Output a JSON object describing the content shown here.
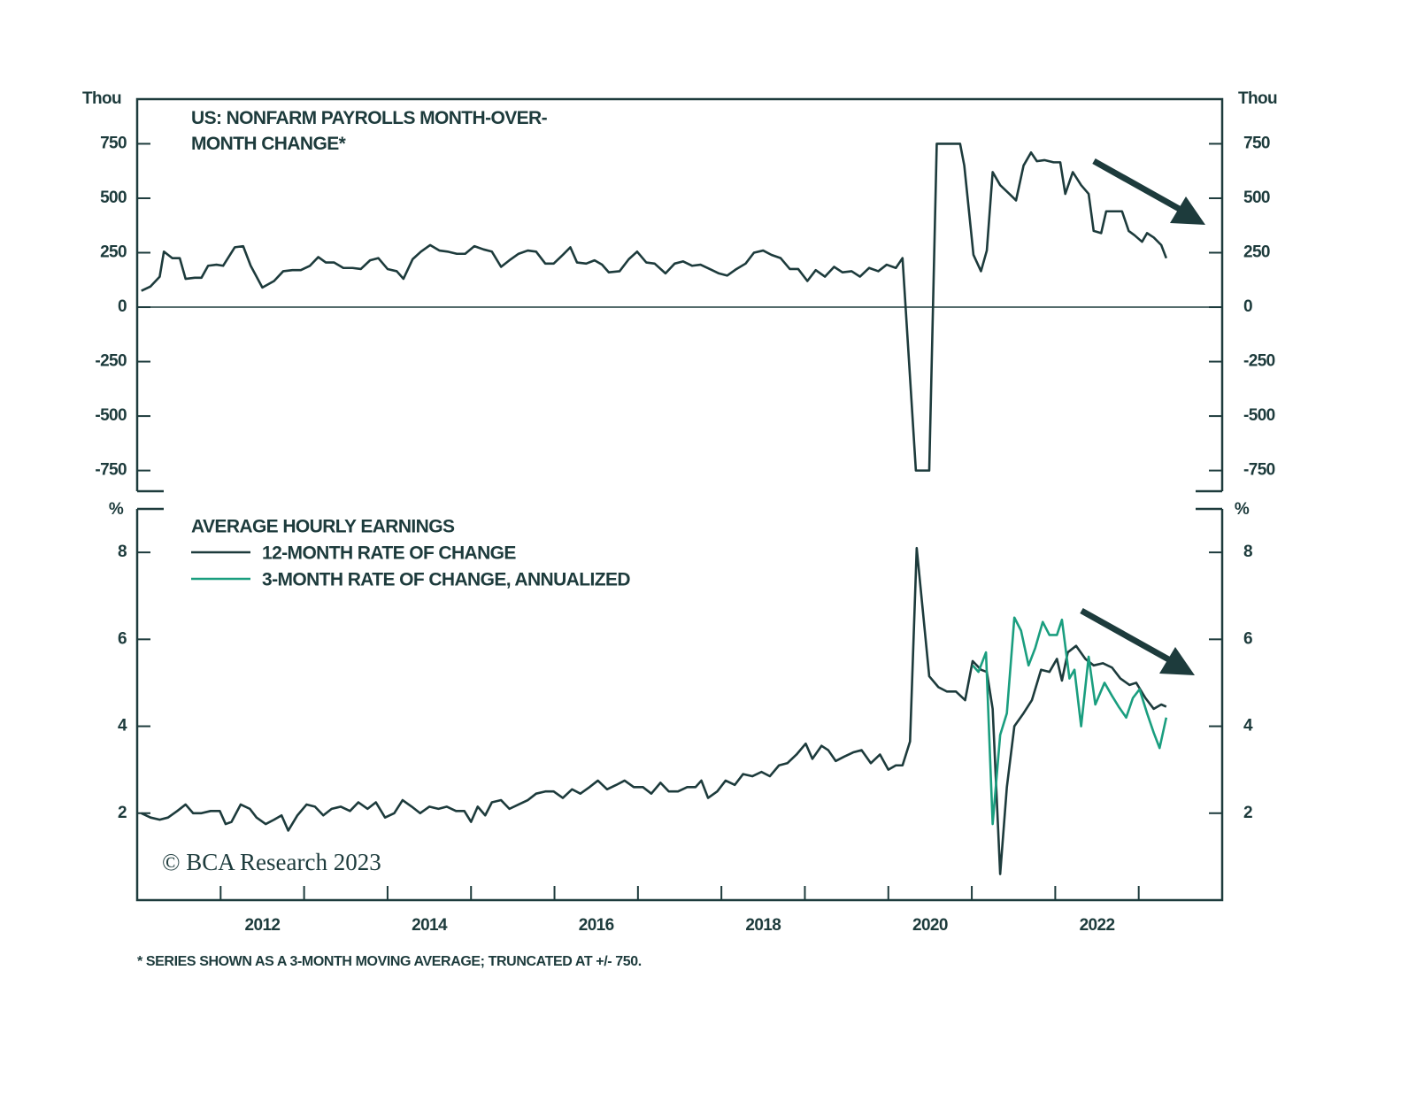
{
  "chart_data": [
    {
      "type": "line",
      "title": "US: NONFARM PAYROLLS MONTH-OVER-\nMONTH CHANGE*",
      "ylabel": "Thou",
      "xlim": [
        2011,
        2024
      ],
      "ylim": [
        -845,
        955
      ],
      "yticks": [
        -750,
        -500,
        -250,
        0,
        250,
        500,
        750
      ],
      "zero_line": true,
      "series": [
        {
          "name": "US: NONFARM PAYROLLS MONTH-OVER-MONTH CHANGE*",
          "color": "#1d3b3c",
          "x": [
            2011.05,
            2011.16,
            2011.27,
            2011.32,
            2011.42,
            2011.51,
            2011.58,
            2011.69,
            2011.77,
            2011.85,
            2011.95,
            2012.03,
            2012.17,
            2012.27,
            2012.36,
            2012.5,
            2012.64,
            2012.75,
            2012.86,
            2012.96,
            2013.07,
            2013.17,
            2013.26,
            2013.36,
            2013.47,
            2013.58,
            2013.68,
            2013.79,
            2013.89,
            2014.0,
            2014.11,
            2014.19,
            2014.3,
            2014.4,
            2014.51,
            2014.62,
            2014.72,
            2014.83,
            2014.93,
            2015.04,
            2015.15,
            2015.25,
            2015.36,
            2015.46,
            2015.57,
            2015.68,
            2015.78,
            2015.89,
            2015.99,
            2016.1,
            2016.19,
            2016.27,
            2016.38,
            2016.48,
            2016.57,
            2016.65,
            2016.78,
            2016.89,
            2016.99,
            2017.1,
            2017.2,
            2017.33,
            2017.44,
            2017.54,
            2017.65,
            2017.75,
            2017.86,
            2017.97,
            2018.07,
            2018.18,
            2018.29,
            2018.39,
            2018.5,
            2018.6,
            2018.71,
            2018.82,
            2018.92,
            2019.03,
            2019.13,
            2019.24,
            2019.35,
            2019.45,
            2019.56,
            2019.66,
            2019.77,
            2019.88,
            2019.98,
            2020.09,
            2020.17,
            2020.33,
            2020.49,
            2020.58,
            2020.86,
            2020.91,
            2021.02,
            2021.11,
            2021.18,
            2021.25,
            2021.34,
            2021.45,
            2021.53,
            2021.62,
            2021.71,
            2021.78,
            2021.87,
            2021.98,
            2022.06,
            2022.12,
            2022.21,
            2022.31,
            2022.4,
            2022.46,
            2022.55,
            2022.61,
            2022.72,
            2022.8,
            2022.88,
            2022.95,
            2023.04,
            2023.1,
            2023.18,
            2023.27,
            2023.33
          ],
          "values": [
            75,
            95,
            140,
            255,
            225,
            225,
            130,
            135,
            135,
            190,
            195,
            190,
            275,
            280,
            190,
            90,
            120,
            165,
            170,
            170,
            190,
            230,
            205,
            205,
            180,
            180,
            175,
            215,
            225,
            175,
            165,
            130,
            220,
            255,
            285,
            260,
            255,
            245,
            245,
            280,
            265,
            255,
            185,
            215,
            245,
            260,
            255,
            200,
            200,
            240,
            275,
            205,
            200,
            215,
            195,
            160,
            165,
            220,
            255,
            205,
            200,
            155,
            200,
            210,
            190,
            195,
            175,
            155,
            145,
            175,
            200,
            250,
            260,
            240,
            225,
            175,
            175,
            120,
            170,
            140,
            185,
            160,
            165,
            140,
            180,
            165,
            195,
            180,
            225,
            -750,
            -750,
            750,
            750,
            650,
            240,
            165,
            260,
            620,
            560,
            520,
            490,
            650,
            710,
            670,
            675,
            665,
            665,
            520,
            620,
            560,
            520,
            350,
            340,
            440,
            440,
            440,
            350,
            330,
            300,
            340,
            320,
            285,
            225
          ]
        }
      ]
    },
    {
      "type": "line",
      "title": "AVERAGE HOURLY EARNINGS",
      "ylabel": "%",
      "xlim": [
        2011,
        2024
      ],
      "ylim": [
        0,
        9
      ],
      "yticks": [
        2,
        4,
        6,
        8
      ],
      "xticks": [
        {
          "value": 2012.5,
          "label": "2012"
        },
        {
          "value": 2014.5,
          "label": "2014"
        },
        {
          "value": 2016.5,
          "label": "2016"
        },
        {
          "value": 2018.5,
          "label": "2018"
        },
        {
          "value": 2020.5,
          "label": "2020"
        },
        {
          "value": 2022.5,
          "label": "2022"
        }
      ],
      "xminorticks": [
        2012,
        2013,
        2014,
        2015,
        2016,
        2017,
        2018,
        2019,
        2020,
        2021,
        2022,
        2023
      ],
      "series": [
        {
          "name": "12-MONTH RATE OF CHANGE",
          "color": "#1d3b3c",
          "x": [
            2011.05,
            2011.16,
            2011.27,
            2011.37,
            2011.48,
            2011.58,
            2011.67,
            2011.77,
            2011.88,
            2011.99,
            2012.06,
            2012.13,
            2012.24,
            2012.35,
            2012.43,
            2012.54,
            2012.64,
            2012.73,
            2012.81,
            2012.92,
            2013.03,
            2013.13,
            2013.23,
            2013.33,
            2013.44,
            2013.55,
            2013.65,
            2013.76,
            2013.86,
            2013.97,
            2014.08,
            2014.18,
            2014.29,
            2014.39,
            2014.5,
            2014.61,
            2014.71,
            2014.82,
            2014.92,
            2015.0,
            2015.08,
            2015.17,
            2015.25,
            2015.36,
            2015.46,
            2015.57,
            2015.68,
            2015.78,
            2015.89,
            2015.99,
            2016.1,
            2016.21,
            2016.31,
            2016.42,
            2016.52,
            2016.63,
            2016.74,
            2016.84,
            2016.95,
            2017.06,
            2017.16,
            2017.27,
            2017.37,
            2017.48,
            2017.59,
            2017.69,
            2017.76,
            2017.84,
            2017.95,
            2018.05,
            2018.16,
            2018.26,
            2018.37,
            2018.48,
            2018.58,
            2018.69,
            2018.79,
            2018.9,
            2019.01,
            2019.09,
            2019.2,
            2019.28,
            2019.37,
            2019.47,
            2019.58,
            2019.68,
            2019.79,
            2019.9,
            2020.0,
            2020.09,
            2020.17,
            2020.26,
            2020.34,
            2020.49,
            2020.6,
            2020.7,
            2020.81,
            2020.92,
            2021.01,
            2021.11,
            2021.18,
            2021.25,
            2021.34,
            2021.42,
            2021.51,
            2021.62,
            2021.72,
            2021.83,
            2021.93,
            2022.02,
            2022.08,
            2022.15,
            2022.25,
            2022.36,
            2022.46,
            2022.57,
            2022.68,
            2022.78,
            2022.89,
            2022.97,
            2023.08,
            2023.18,
            2023.27,
            2023.33
          ],
          "values": [
            2.0,
            1.9,
            1.85,
            1.9,
            2.05,
            2.2,
            2.0,
            2.0,
            2.05,
            2.05,
            1.75,
            1.8,
            2.2,
            2.1,
            1.9,
            1.75,
            1.85,
            1.95,
            1.6,
            1.95,
            2.2,
            2.15,
            1.95,
            2.1,
            2.15,
            2.05,
            2.25,
            2.1,
            2.25,
            1.9,
            2.0,
            2.3,
            2.15,
            2.0,
            2.15,
            2.1,
            2.15,
            2.05,
            2.05,
            1.8,
            2.15,
            1.95,
            2.25,
            2.3,
            2.1,
            2.2,
            2.3,
            2.45,
            2.5,
            2.5,
            2.35,
            2.55,
            2.45,
            2.6,
            2.75,
            2.55,
            2.65,
            2.75,
            2.6,
            2.6,
            2.45,
            2.7,
            2.5,
            2.5,
            2.6,
            2.6,
            2.75,
            2.35,
            2.5,
            2.75,
            2.65,
            2.9,
            2.85,
            2.95,
            2.85,
            3.1,
            3.15,
            3.35,
            3.6,
            3.25,
            3.55,
            3.45,
            3.2,
            3.3,
            3.4,
            3.45,
            3.15,
            3.35,
            3.0,
            3.1,
            3.1,
            3.65,
            8.1,
            5.15,
            4.9,
            4.8,
            4.8,
            4.6,
            5.5,
            5.3,
            5.25,
            4.4,
            0.6,
            2.6,
            4.0,
            4.3,
            4.6,
            5.3,
            5.25,
            5.55,
            5.05,
            5.7,
            5.85,
            5.55,
            5.4,
            5.45,
            5.35,
            5.1,
            4.95,
            5.0,
            4.65,
            4.4,
            4.5,
            4.45
          ]
        },
        {
          "name": "3-MONTH RATE OF CHANGE, ANNUALIZED",
          "color": "#1a9e7f",
          "x": [
            2021.01,
            2021.08,
            2021.17,
            2021.25,
            2021.34,
            2021.42,
            2021.51,
            2021.59,
            2021.68,
            2021.76,
            2021.85,
            2021.93,
            2022.02,
            2022.08,
            2022.17,
            2022.23,
            2022.31,
            2022.4,
            2022.48,
            2022.59,
            2022.68,
            2022.76,
            2022.85,
            2022.93,
            2023.01,
            2023.1,
            2023.18,
            2023.25,
            2023.33
          ],
          "values": [
            5.4,
            5.25,
            5.7,
            1.75,
            3.8,
            4.3,
            6.5,
            6.2,
            5.4,
            5.8,
            6.4,
            6.1,
            6.1,
            6.45,
            5.1,
            5.3,
            4.0,
            5.6,
            4.5,
            5.0,
            4.7,
            4.45,
            4.2,
            4.65,
            4.85,
            4.3,
            3.85,
            3.5,
            4.2
          ]
        }
      ]
    }
  ],
  "source": "© BCA Research 2023",
  "footnote": "* SERIES SHOWN AS A 3-MONTH MOVING AVERAGE; TRUNCATED AT +/- 750."
}
